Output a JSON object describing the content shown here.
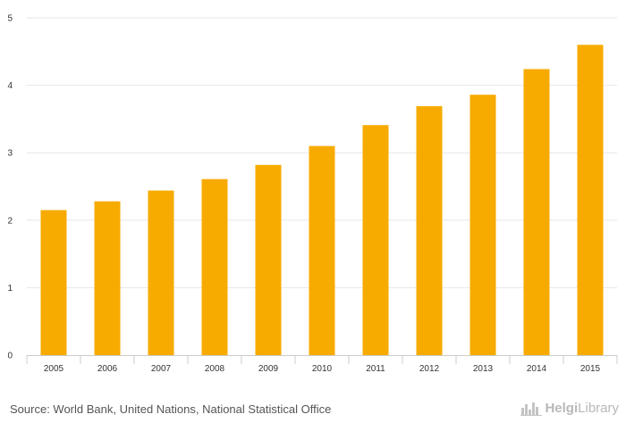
{
  "chart_data": {
    "type": "bar",
    "title": "",
    "xlabel": "",
    "ylabel": "",
    "categories": [
      "2005",
      "2006",
      "2007",
      "2008",
      "2009",
      "2010",
      "2011",
      "2012",
      "2013",
      "2014",
      "2015"
    ],
    "values": [
      2.15,
      2.28,
      2.44,
      2.61,
      2.82,
      3.1,
      3.41,
      3.69,
      3.86,
      4.24,
      4.6
    ],
    "ylim": [
      0,
      5
    ],
    "yticks": [
      "0",
      "1",
      "2",
      "3",
      "4",
      "5"
    ],
    "grid": true,
    "legend": "none",
    "bar_color": "#f7ab00"
  },
  "footer": {
    "source": "Source: World Bank, United Nations, National Statistical Office",
    "brand": "HelgiLibrary",
    "brand_first": "Helgi",
    "brand_second": "Library"
  },
  "colors": {
    "grid": "#e6e6e6",
    "axis": "#cccccc",
    "brand": "#b8b8b8"
  }
}
